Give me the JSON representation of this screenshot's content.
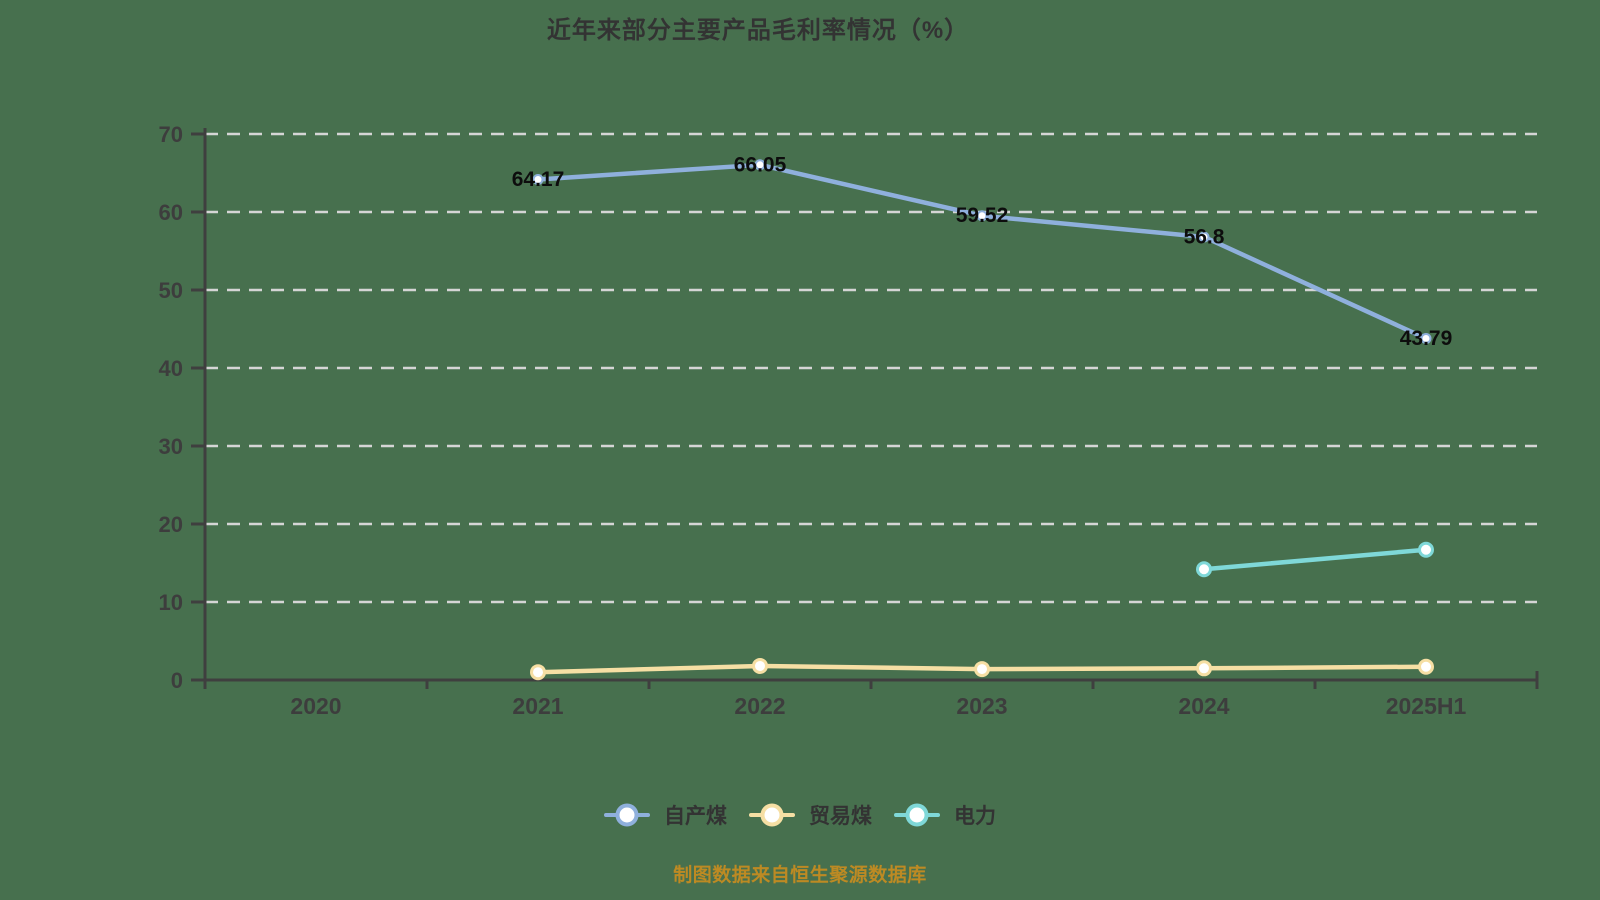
{
  "title": "近年来部分主要产品毛利率情况（%）",
  "source_note": "制图数据来自恒生聚源数据库",
  "colors": {
    "background": "#47704E",
    "grid": "#D5D5D5",
    "axis": "#3F3F3F",
    "tick_label": "#3D3D3D",
    "data_label": "#0D0D0D",
    "title_text": "#333333",
    "legend_text": "#333333",
    "source_text": "#BD8A23",
    "series_self_produced_coal": "#8FB0DC",
    "series_trade_coal": "#F6DFA4",
    "series_electricity": "#7FD8D8"
  },
  "chart_data": {
    "type": "line",
    "title": "近年来部分主要产品毛利率情况（%）",
    "categories": [
      "2020",
      "2021",
      "2022",
      "2023",
      "2024",
      "2025H1"
    ],
    "xlabel": "",
    "ylabel": "",
    "ylim": [
      0,
      70
    ],
    "yticks": [
      0,
      10,
      20,
      30,
      40,
      50,
      60,
      70
    ],
    "grid": "horizontal-dashed",
    "legend_position": "bottom",
    "series": [
      {
        "name": "自产煤",
        "color": "#8FB0DC",
        "values": [
          null,
          64.17,
          66.05,
          59.52,
          56.8,
          43.79
        ],
        "labels": [
          null,
          "64.17",
          "66.05",
          "59.52",
          "56.8",
          "43.79"
        ]
      },
      {
        "name": "贸易煤",
        "color": "#F6DFA4",
        "values": [
          null,
          1.0,
          1.8,
          1.4,
          1.5,
          1.7
        ],
        "labels": [
          null,
          null,
          null,
          null,
          null,
          null
        ]
      },
      {
        "name": "电力",
        "color": "#7FD8D8",
        "values": [
          null,
          null,
          null,
          null,
          14.2,
          16.7
        ],
        "labels": [
          null,
          null,
          null,
          null,
          null,
          null
        ]
      }
    ]
  }
}
